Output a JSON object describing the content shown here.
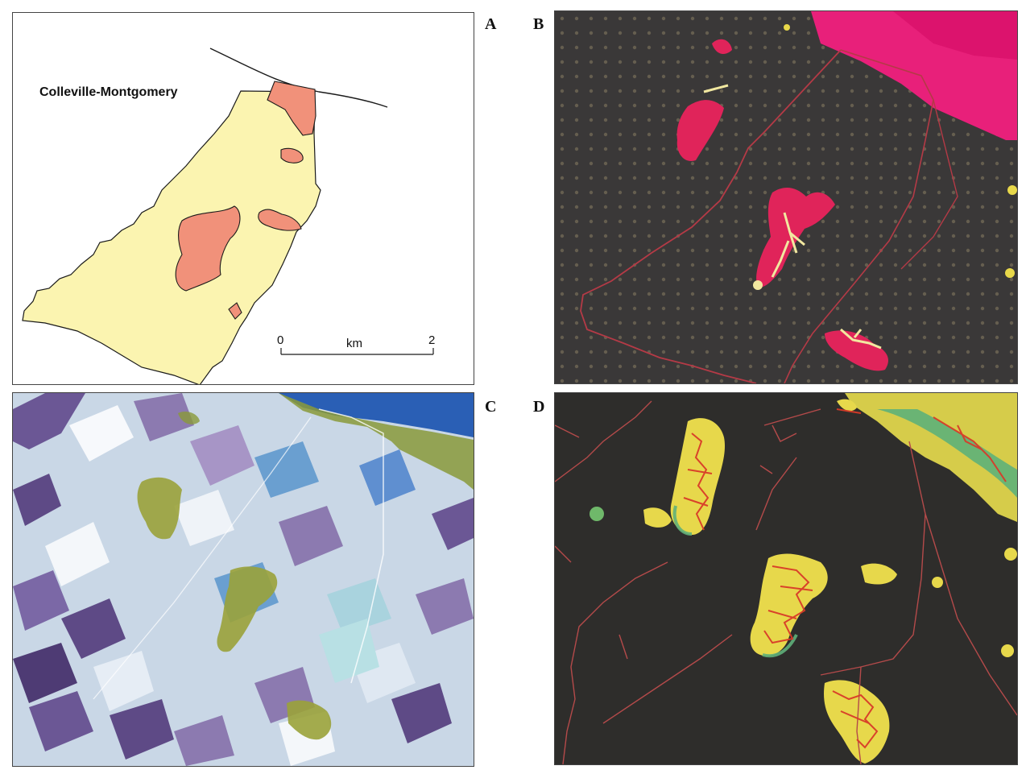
{
  "panel_letters": {
    "a": "A",
    "b": "B",
    "c": "C",
    "d": "D"
  },
  "panel_a": {
    "town_name": "Colleville-Montgomery",
    "scale_zero": "0",
    "scale_unit": "km",
    "scale_max": "2",
    "colors": {
      "commune_fill": "#fbf4b0",
      "site_fill": "#f1917a",
      "outline": "#1a1a1a"
    }
  },
  "panel_b": {
    "colors": {
      "background": "#3a3838",
      "dots": "#6a6252",
      "boundary": "#b43a46",
      "anomaly": "#e0245a",
      "highlight": "#f2e8a0",
      "sea": "#e8207a"
    }
  },
  "panel_c": {
    "colors": {
      "fields_light": "#dfe8f2",
      "fields_dark": "#5e4a86",
      "fields_mid": "#8c7ab0",
      "vegetation": "#9aa23a",
      "sea": "#2a5fb5"
    }
  },
  "panel_d": {
    "colors": {
      "background": "#2e2d2b",
      "boundary": "#b44a4a",
      "yellow": "#e7d84b",
      "green": "#5fb07a",
      "red": "#d83a28"
    }
  }
}
